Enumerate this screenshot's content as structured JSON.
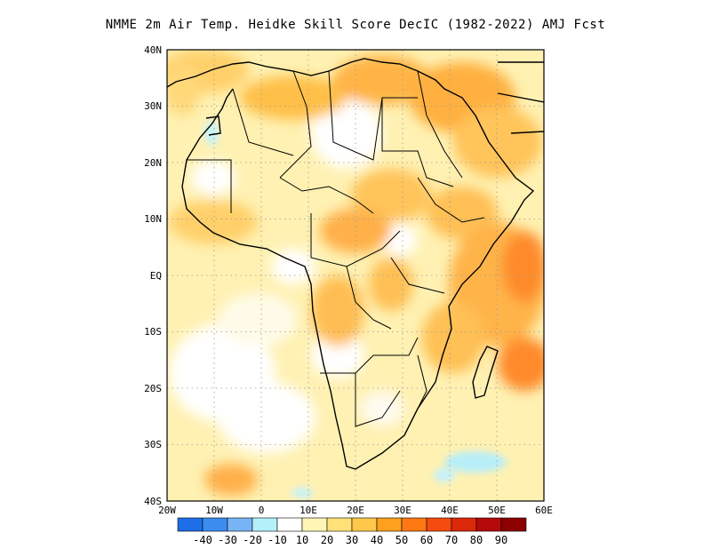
{
  "title": "NMME  2m Air Temp. Heidke Skill Score DecIC (1982-2022) AMJ Fcst",
  "lat_ticks": [
    "40N",
    "30N",
    "20N",
    "10N",
    "EQ",
    "10S",
    "20S",
    "30S",
    "40S"
  ],
  "lon_ticks": [
    "20W",
    "10W",
    "0",
    "10E",
    "20E",
    "30E",
    "40E",
    "50E",
    "60E"
  ],
  "colorbar": {
    "labels": [
      "-40",
      "-30",
      "-20",
      "-10",
      "10",
      "20",
      "30",
      "40",
      "50",
      "60",
      "70",
      "80",
      "90"
    ],
    "colors": [
      "#1e6ee8",
      "#3c8cf0",
      "#78b4f5",
      "#b4f0fa",
      "#ffffff",
      "#fff5b4",
      "#ffe178",
      "#ffc84b",
      "#ffa01e",
      "#ff7814",
      "#f54b0f",
      "#dc280a",
      "#b40a0a",
      "#8c0000"
    ]
  },
  "chart_data": {
    "type": "heatmap",
    "title": "NMME  2m Air Temp. Heidke Skill Score DecIC (1982-2022) AMJ Fcst",
    "xlim": [
      "20W",
      "60E"
    ],
    "ylim": [
      "40S",
      "40N"
    ],
    "grid": true,
    "colorbar_levels": [
      -40,
      -30,
      -20,
      -10,
      10,
      20,
      30,
      40,
      50,
      60,
      70,
      80,
      90
    ]
  }
}
